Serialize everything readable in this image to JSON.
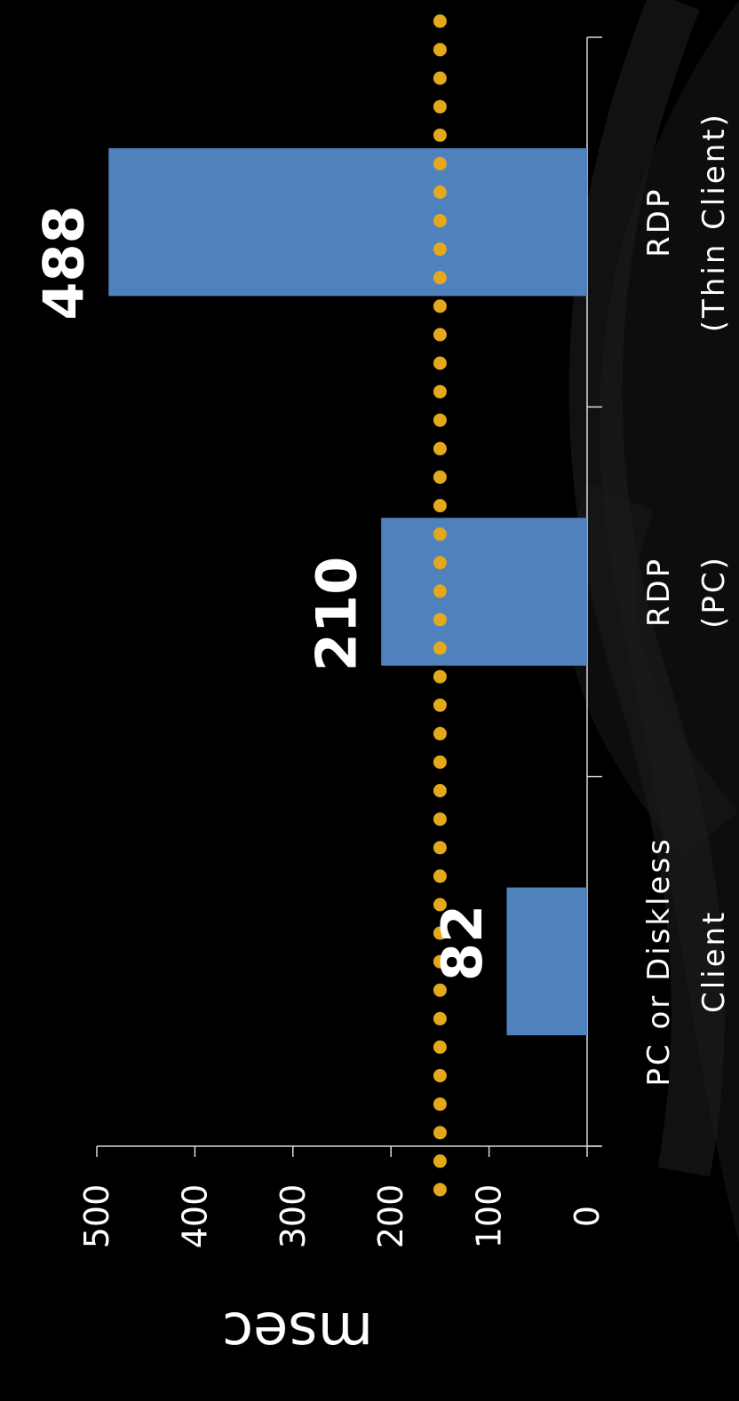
{
  "chart_data": {
    "type": "bar",
    "categories": [
      [
        "PC or Diskless",
        "Client"
      ],
      [
        "RDP",
        "(PC)"
      ],
      [
        "RDP",
        "(Thin Client)"
      ]
    ],
    "values": [
      82,
      210,
      488
    ],
    "data_labels": [
      "82",
      "210",
      "488"
    ],
    "ylabel": "msec",
    "ylim": [
      0,
      500
    ],
    "yticks": [
      0,
      100,
      200,
      300,
      400,
      500
    ],
    "reference_line": {
      "value": 150,
      "style": "dotted",
      "color": "#E3A81B"
    },
    "bar_color": "#4F81BD",
    "axis_color": "#D9D9D9",
    "background": "#000000",
    "grid": false,
    "legend": "none",
    "orientation": "rotated-90-clockwise"
  }
}
